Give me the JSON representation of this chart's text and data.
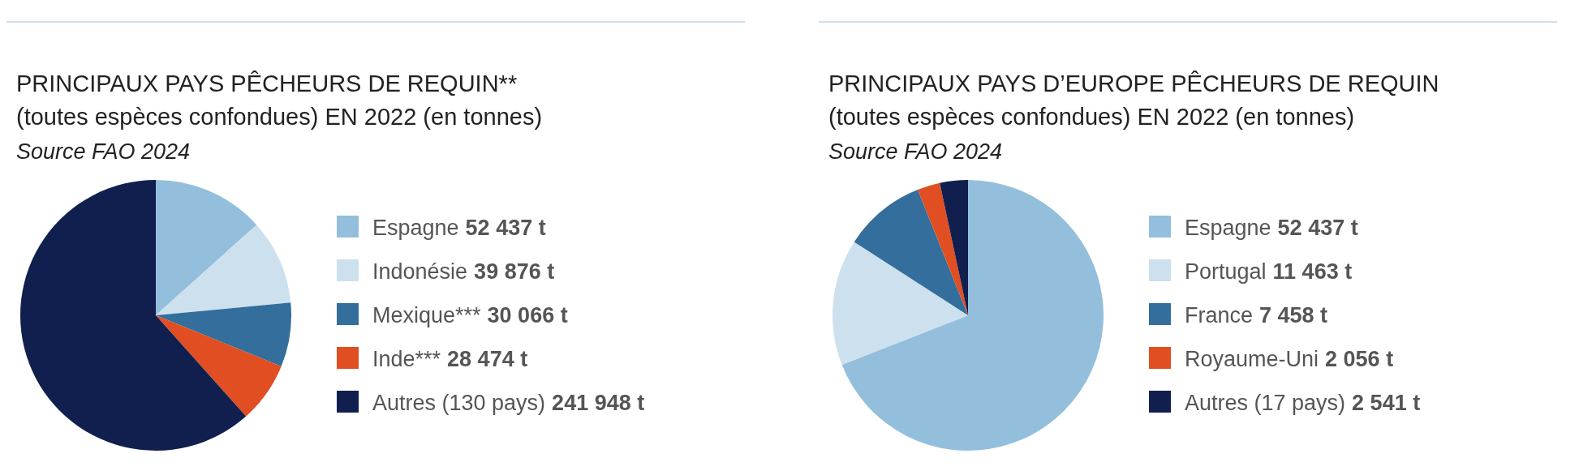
{
  "chart_data": [
    {
      "type": "pie",
      "title": "PRINCIPAUX PAYS PÊCHEURS DE REQUIN**",
      "subtitle": "(toutes espèces confondues) EN 2022 (en tonnes)",
      "annotations": [
        "Source FAO 2024"
      ],
      "legend": "right",
      "categories": [
        "Espagne",
        "Indonésie",
        "Mexique***",
        "Inde***",
        "Autres (130 pays)"
      ],
      "values": [
        52437,
        39876,
        30066,
        28474,
        241948
      ],
      "value_labels": [
        "52 437 t",
        "39 876 t",
        "30 066 t",
        "28 474 t",
        "241 948 t"
      ],
      "colors": [
        "#93bfdd",
        "#cde0ee",
        "#336e9c",
        "#e04e22",
        "#111f4e"
      ]
    },
    {
      "type": "pie",
      "title": "PRINCIPAUX PAYS D’EUROPE PÊCHEURS DE REQUIN",
      "subtitle": "(toutes espèces confondues) EN 2022 (en tonnes)",
      "annotations": [
        "Source FAO 2024"
      ],
      "legend": "right",
      "categories": [
        "Espagne",
        "Portugal",
        "France",
        "Royaume-Uni",
        "Autres (17 pays)"
      ],
      "values": [
        52437,
        11463,
        7458,
        2056,
        2541
      ],
      "value_labels": [
        "52 437 t",
        "11 463 t",
        "7 458 t",
        "2 056 t",
        "2 541 t"
      ],
      "colors": [
        "#93bfdd",
        "#cde0ee",
        "#336e9c",
        "#e04e22",
        "#111f4e"
      ]
    }
  ]
}
